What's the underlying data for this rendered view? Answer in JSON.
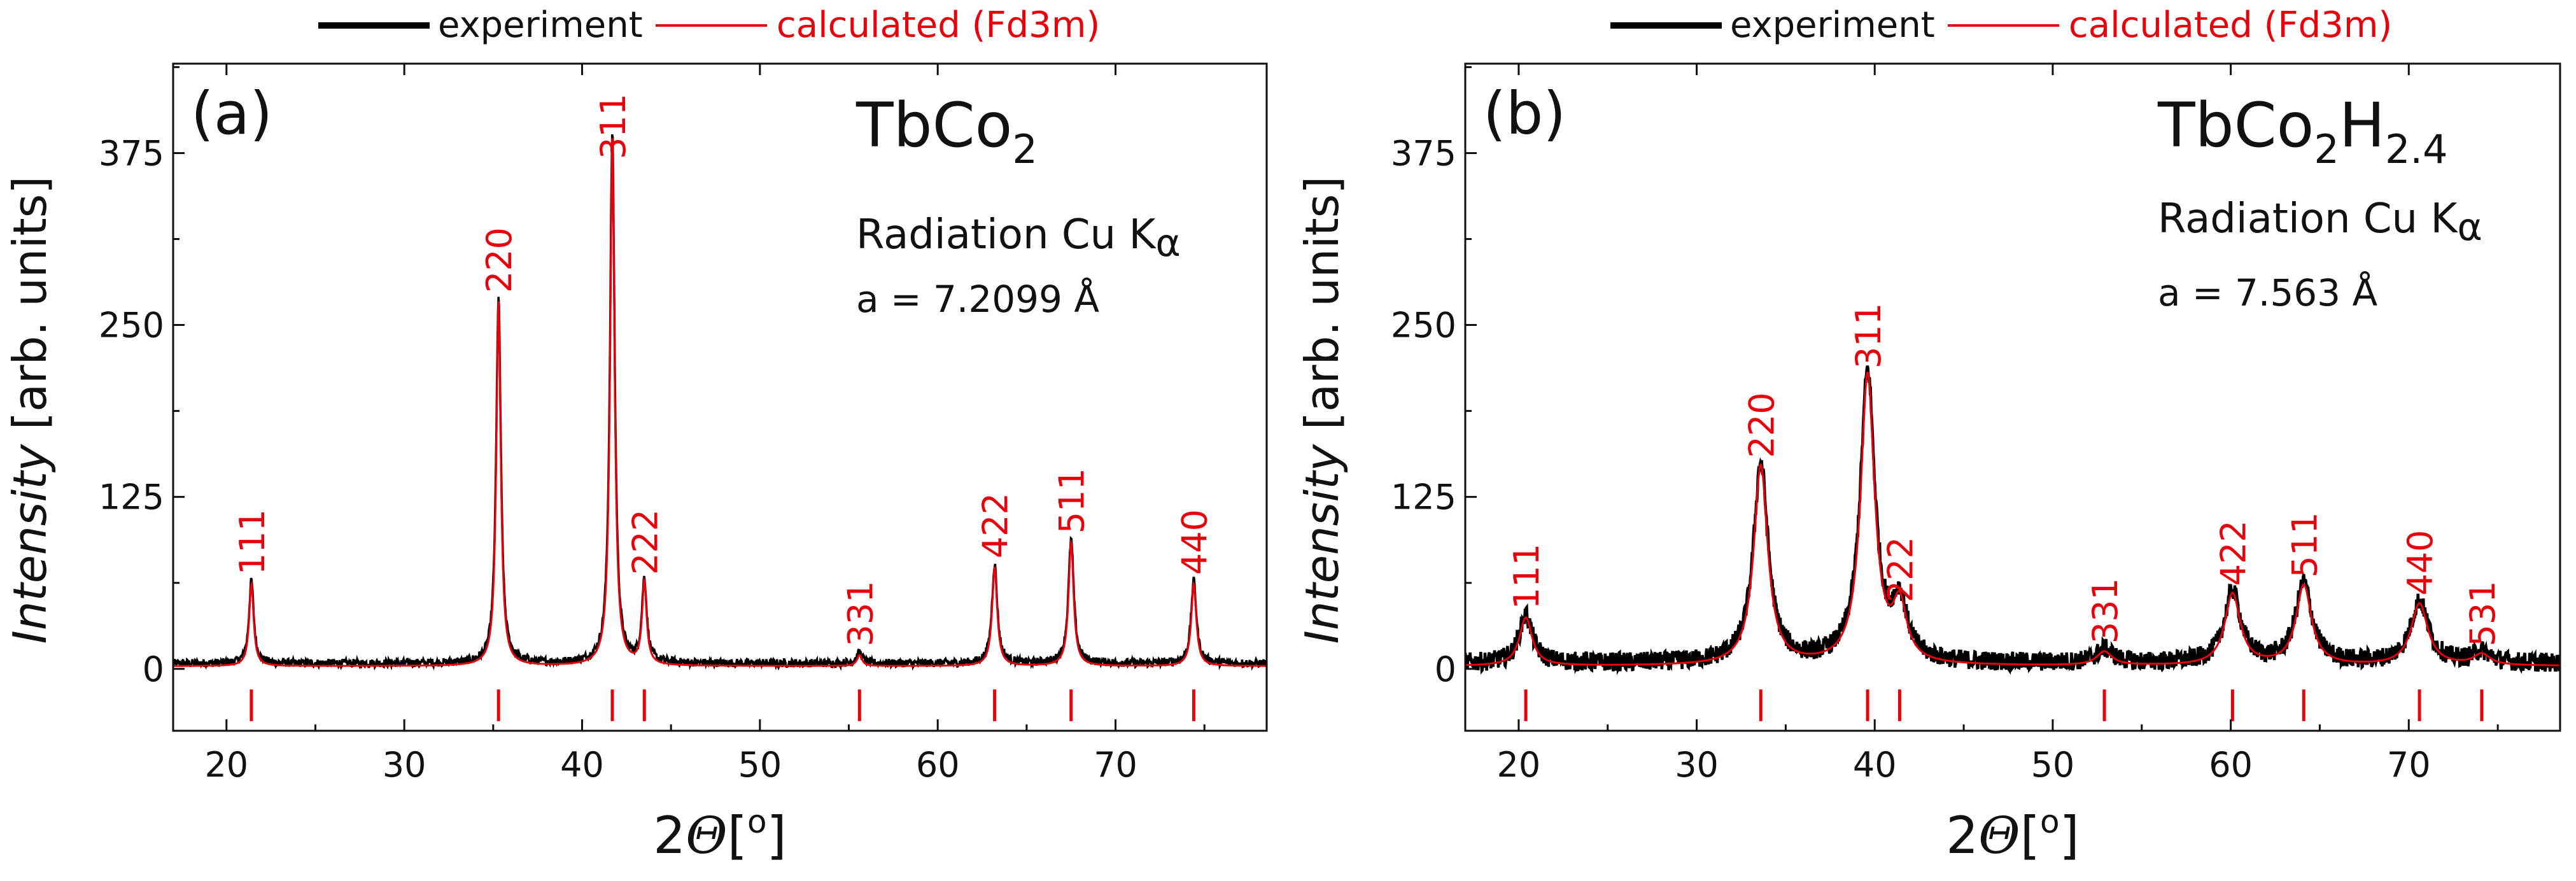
{
  "colors": {
    "experiment": "#000000",
    "calculated": "#e8000b",
    "axis": "#111111",
    "label": "#111111"
  },
  "chart_data": [
    {
      "panel_label": "(a)",
      "type": "line",
      "legend": {
        "experiment": "experiment",
        "calculated": "calculated (Fd3m)",
        "placement": "top-center"
      },
      "compound": {
        "base": "TbCo",
        "sub": "2"
      },
      "radiation": {
        "text": "Radiation Cu K",
        "symbol": "α"
      },
      "lattice_text": "a = 7.2099 Å",
      "xlabel": {
        "prefix": "2",
        "symbol": "Θ",
        "unit_open": "[",
        "unit_sup": "o",
        "unit_close": "]"
      },
      "ylabel": {
        "italic": "Intensity",
        "rest": " [arb. units]"
      },
      "xlim": [
        17,
        78.5
      ],
      "ylim": [
        -45,
        440
      ],
      "xticks": [
        20,
        30,
        40,
        50,
        60,
        70
      ],
      "yticks": [
        0,
        125,
        250,
        375
      ],
      "peaks": [
        {
          "hkl": "111",
          "x": 21.4,
          "y": 60,
          "width": 0.16
        },
        {
          "hkl": "220",
          "x": 35.3,
          "y": 265,
          "width": 0.16
        },
        {
          "hkl": "311",
          "x": 41.7,
          "y": 385,
          "width": 0.16
        },
        {
          "hkl": "222",
          "x": 43.5,
          "y": 60,
          "width": 0.16
        },
        {
          "hkl": "331",
          "x": 55.6,
          "y": 8,
          "width": 0.18
        },
        {
          "hkl": "422",
          "x": 63.2,
          "y": 72,
          "width": 0.18
        },
        {
          "hkl": "511",
          "x": 67.5,
          "y": 90,
          "width": 0.18
        },
        {
          "hkl": "440",
          "x": 74.4,
          "y": 60,
          "width": 0.18
        }
      ],
      "noise": 3
    },
    {
      "panel_label": "(b)",
      "type": "line",
      "legend": {
        "experiment": "experiment",
        "calculated": "calculated (Fd3m)",
        "placement": "top-center"
      },
      "compound": {
        "base": "TbCo",
        "sub": "2",
        "base2": "H",
        "sub2": "2.4"
      },
      "radiation": {
        "text": "Radiation Cu K",
        "symbol": "α"
      },
      "lattice_text": "a = 7.563 Å",
      "xlabel": {
        "prefix": "2",
        "symbol": "Θ",
        "unit_open": "[",
        "unit_sup": "o",
        "unit_close": "]"
      },
      "ylabel": {
        "italic": "Intensity",
        "rest": " [arb. units]"
      },
      "xlim": [
        17,
        78.5
      ],
      "ylim": [
        -45,
        440
      ],
      "xticks": [
        20,
        30,
        40,
        50,
        60,
        70
      ],
      "yticks": [
        0,
        125,
        250,
        375
      ],
      "peaks": [
        {
          "hkl": "111",
          "x": 20.4,
          "y": 35,
          "width": 0.45
        },
        {
          "hkl": "220",
          "x": 33.6,
          "y": 145,
          "width": 0.5
        },
        {
          "hkl": "311",
          "x": 39.6,
          "y": 210,
          "width": 0.5
        },
        {
          "hkl": "222",
          "x": 41.4,
          "y": 40,
          "width": 0.5
        },
        {
          "hkl": "331",
          "x": 52.9,
          "y": 10,
          "width": 0.55
        },
        {
          "hkl": "422",
          "x": 60.1,
          "y": 52,
          "width": 0.55
        },
        {
          "hkl": "511",
          "x": 64.1,
          "y": 58,
          "width": 0.55
        },
        {
          "hkl": "440",
          "x": 70.6,
          "y": 45,
          "width": 0.6
        },
        {
          "hkl": "531",
          "x": 74.1,
          "y": 8,
          "width": 0.6
        }
      ],
      "noise": 7
    }
  ]
}
